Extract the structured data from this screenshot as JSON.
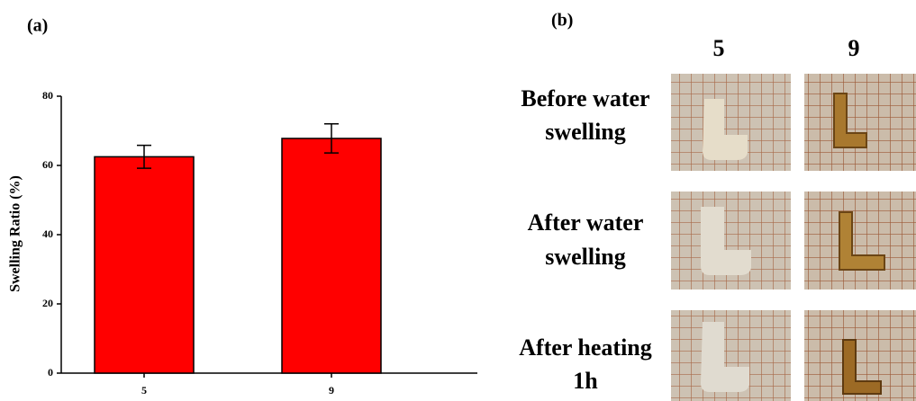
{
  "chart_data": {
    "type": "bar",
    "panel_label": "(a)",
    "y_label": "Swelling Ratio (%)",
    "categories": [
      "5",
      "9"
    ],
    "values": [
      62.5,
      67.8
    ],
    "errors": [
      3.3,
      4.2
    ],
    "color": "#ff0000",
    "ylim": [
      0,
      80
    ],
    "yticks": [
      0,
      20,
      40,
      60,
      80
    ]
  },
  "photo_panel": {
    "panel_label": "(b)",
    "columns": [
      "5",
      "9"
    ],
    "rows": [
      [
        "Before water",
        "swelling"
      ],
      [
        "After water",
        "swelling"
      ],
      [
        "After heating",
        "1h"
      ]
    ]
  }
}
